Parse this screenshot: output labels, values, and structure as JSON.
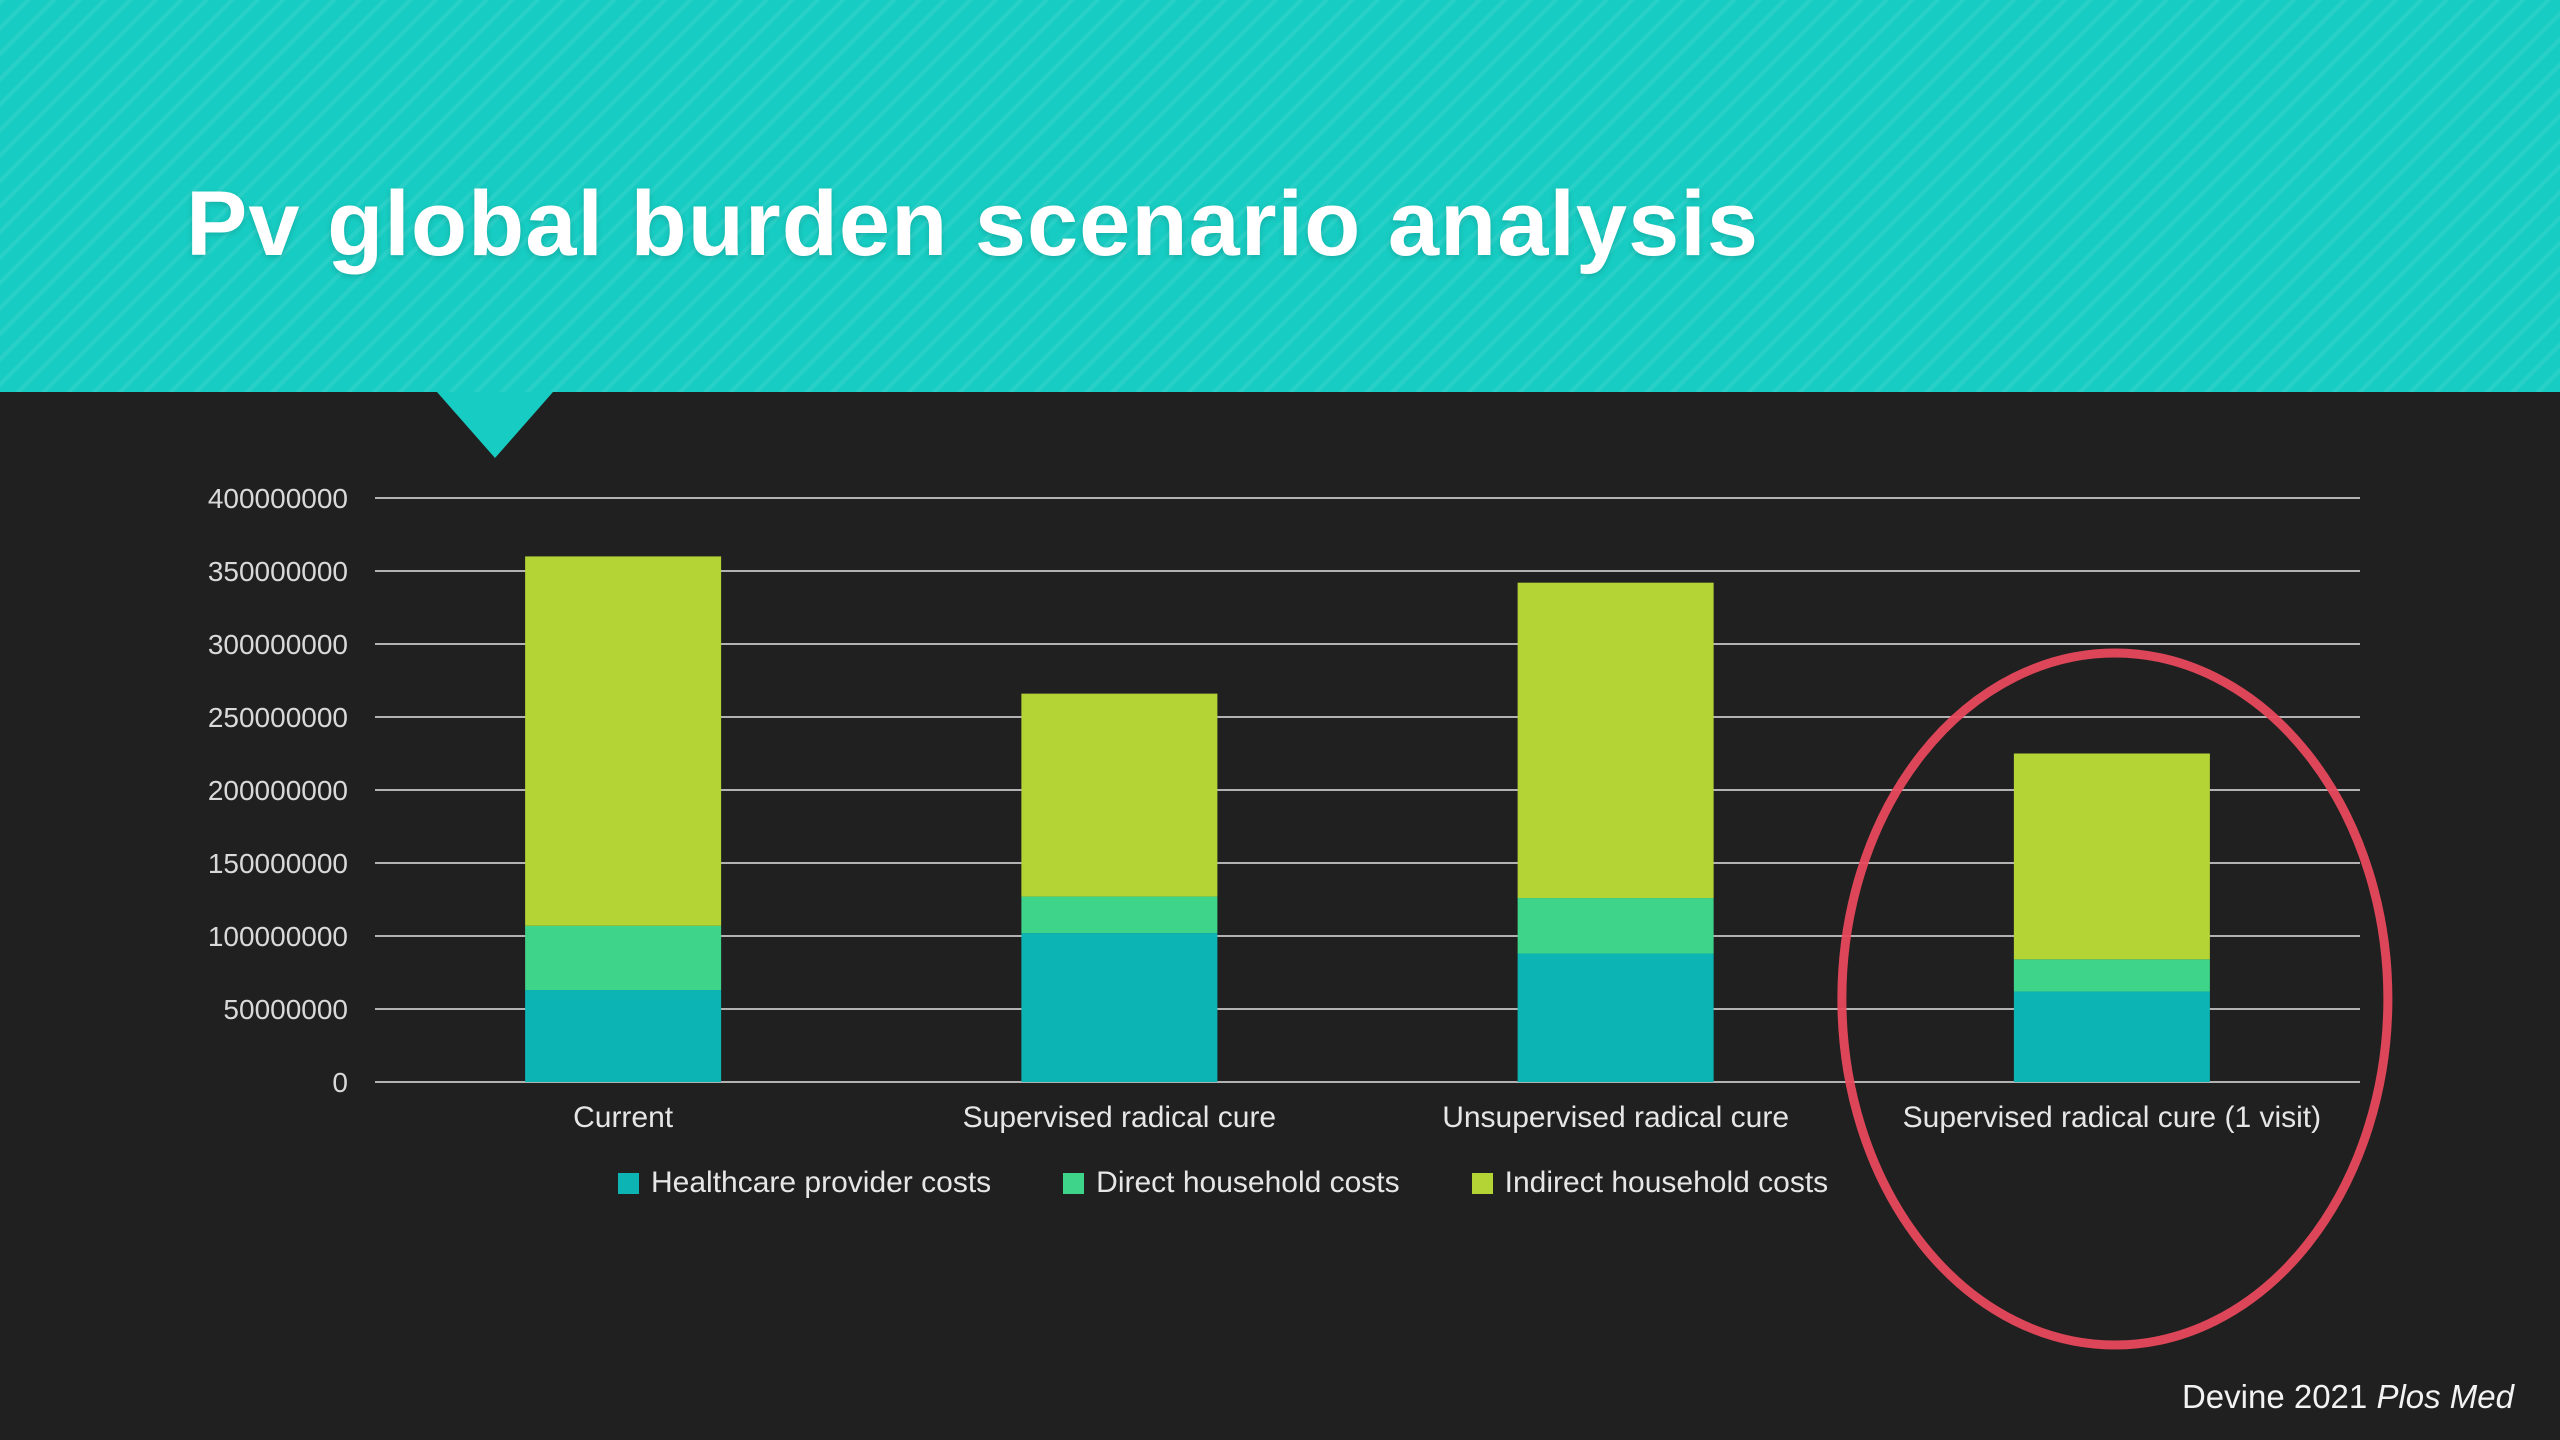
{
  "slide": {
    "title": "Pv global burden scenario analysis",
    "citation_normal": "Devine 2021 ",
    "citation_italic": "Plos Med"
  },
  "theme": {
    "banner_color": "#17ccc2",
    "background_color": "#202020",
    "gridline_color": "#cccccc",
    "axis_text_color": "#d9d9d9",
    "category_text_color": "#e6e6e6",
    "highlight_ellipse_color": "#e8495c"
  },
  "chart_data": {
    "type": "bar",
    "stacked": true,
    "title": "",
    "xlabel": "",
    "ylabel": "",
    "categories": [
      "Current",
      "Supervised radical cure",
      "Unsupervised radical cure",
      "Supervised radical cure (1 visit)"
    ],
    "series": [
      {
        "name": "Healthcare provider costs",
        "color": "#0db4b4",
        "values": [
          63000000,
          102000000,
          88000000,
          62000000
        ]
      },
      {
        "name": "Direct household costs",
        "color": "#3ed489",
        "values": [
          44000000,
          25000000,
          38000000,
          22000000
        ]
      },
      {
        "name": "Indirect household costs",
        "color": "#b4d334",
        "values": [
          253000000,
          139000000,
          216000000,
          141000000
        ]
      }
    ],
    "totals": [
      360000000,
      266000000,
      342000000,
      225000000
    ],
    "ylim": [
      0,
      400000000
    ],
    "ytick_step": 50000000,
    "ytick_labels": [
      "0",
      "50000000",
      "100000000",
      "150000000",
      "200000000",
      "250000000",
      "300000000",
      "350000000",
      "400000000"
    ],
    "grid": true,
    "legend_position": "bottom",
    "highlight": {
      "shape": "ellipse",
      "category_index": 3,
      "color": "#e8495c",
      "note": "red ellipse circling the 'Supervised radical cure (1 visit)' bar"
    }
  }
}
